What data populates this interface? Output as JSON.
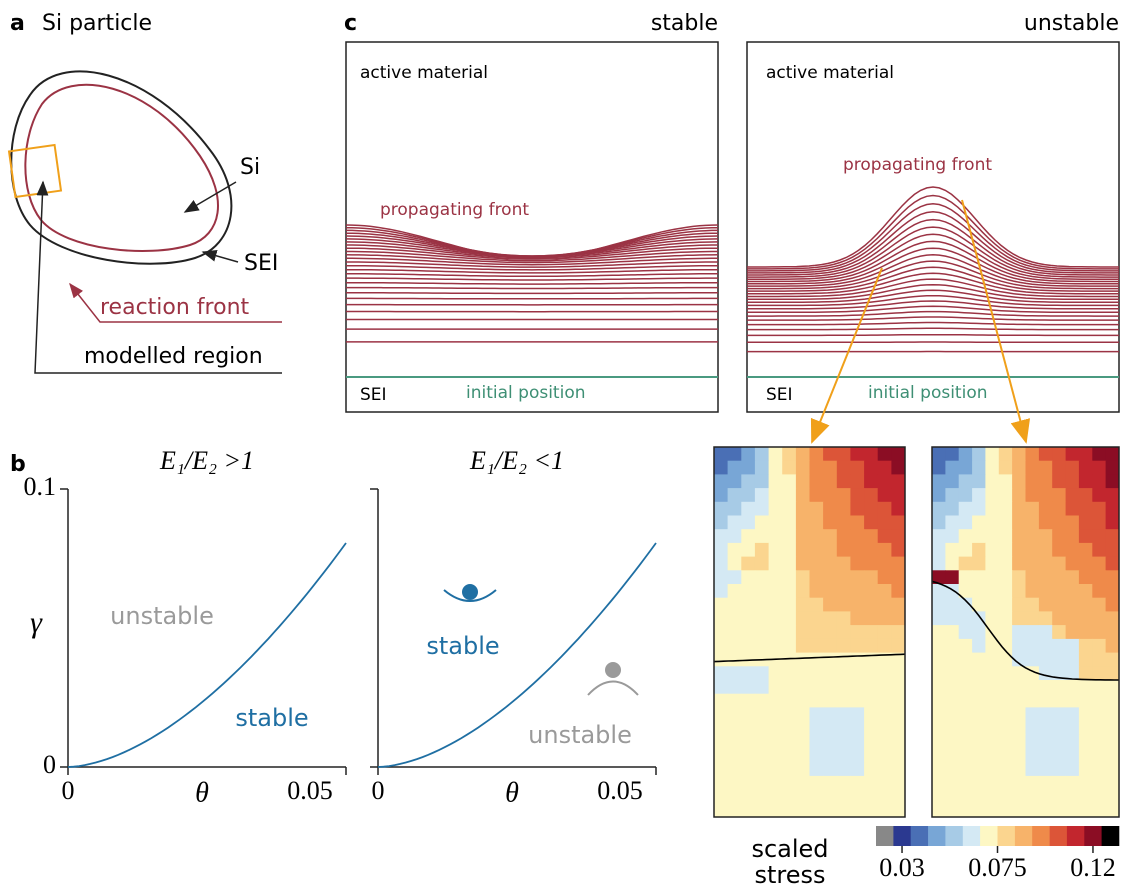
{
  "panel_a": {
    "label": "a",
    "title": "Si particle",
    "si": "Si",
    "sei": "SEI",
    "reaction_front": "reaction front",
    "modelled_region": "modelled region"
  },
  "panel_b": {
    "label": "b",
    "plots": [
      {
        "title": "E₁/E₂ >1",
        "y_label": "γ",
        "x_label": "θ",
        "xticks": [
          0,
          0.05
        ],
        "yticks": [
          0,
          0.1
        ],
        "upper_region": "unstable",
        "lower_region": "stable"
      },
      {
        "title": "E₁/E₂ <1",
        "y_label": "γ",
        "x_label": "θ",
        "xticks": [
          0,
          0.05
        ],
        "yticks": [
          0,
          0.1
        ],
        "upper_region": "stable",
        "lower_region": "unstable"
      }
    ]
  },
  "panel_c": {
    "label": "c",
    "columns": [
      {
        "title": "stable",
        "top": "active material",
        "front": "propagating front",
        "bottom": "SEI",
        "initial": "initial position"
      },
      {
        "title": "unstable",
        "top": "active material",
        "front": "propagating front",
        "bottom": "SEI",
        "initial": "initial position"
      }
    ]
  },
  "colorbar": {
    "title": [
      "scaled",
      "stress"
    ],
    "ticks": [
      0.03,
      0.075,
      0.12
    ]
  }
}
